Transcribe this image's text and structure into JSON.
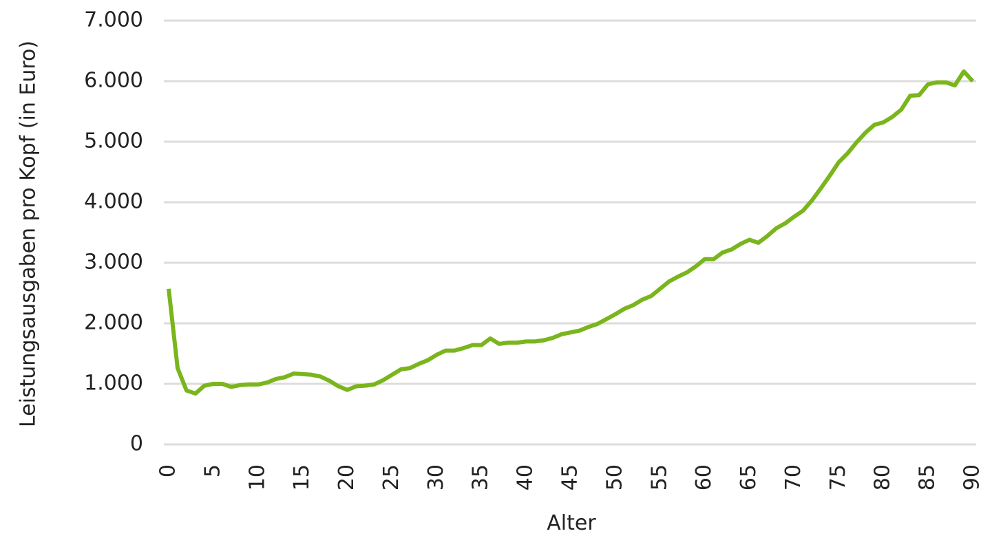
{
  "chart_data": {
    "type": "line",
    "xlabel": "Alter",
    "ylabel": "Leistungsausgaben pro Kopf (in Euro)",
    "x": [
      0,
      1,
      2,
      3,
      4,
      5,
      6,
      7,
      8,
      9,
      10,
      11,
      12,
      13,
      14,
      15,
      16,
      17,
      18,
      19,
      20,
      21,
      22,
      23,
      24,
      25,
      26,
      27,
      28,
      29,
      30,
      31,
      32,
      33,
      34,
      35,
      36,
      37,
      38,
      39,
      40,
      41,
      42,
      43,
      44,
      45,
      46,
      47,
      48,
      49,
      50,
      51,
      52,
      53,
      54,
      55,
      56,
      57,
      58,
      59,
      60,
      61,
      62,
      63,
      64,
      65,
      66,
      67,
      68,
      69,
      70,
      71,
      72,
      73,
      74,
      75,
      76,
      77,
      78,
      79,
      80,
      81,
      82,
      83,
      84,
      85,
      86,
      87,
      88,
      89,
      90
    ],
    "series": [
      {
        "color": "#7ab51d",
        "values": [
          2570,
          1260,
          890,
          840,
          970,
          1000,
          1000,
          950,
          980,
          990,
          990,
          1020,
          1080,
          1110,
          1170,
          1160,
          1150,
          1120,
          1050,
          960,
          900,
          960,
          970,
          990,
          1060,
          1150,
          1240,
          1260,
          1330,
          1390,
          1480,
          1550,
          1550,
          1590,
          1640,
          1640,
          1750,
          1660,
          1680,
          1680,
          1700,
          1700,
          1720,
          1760,
          1820,
          1850,
          1880,
          1940,
          1990,
          2070,
          2150,
          2240,
          2300,
          2390,
          2450,
          2570,
          2690,
          2770,
          2840,
          2940,
          3060,
          3060,
          3170,
          3220,
          3310,
          3380,
          3330,
          3440,
          3570,
          3650,
          3760,
          3860,
          4030,
          4230,
          4440,
          4660,
          4810,
          4990,
          5150,
          5280,
          5320,
          5410,
          5530,
          5760,
          5770,
          5950,
          5980,
          5980,
          5930,
          6160,
          6000
        ]
      }
    ],
    "xlim": [
      0,
      90
    ],
    "xticks": [
      0,
      5,
      10,
      15,
      20,
      25,
      30,
      35,
      40,
      45,
      50,
      55,
      60,
      65,
      70,
      75,
      80,
      85,
      90
    ],
    "ylim": [
      0,
      7000
    ],
    "yticks": [
      0,
      {
        "value": 1000,
        "label": "1.000"
      },
      {
        "value": 2000,
        "label": "2.000"
      },
      {
        "value": 3000,
        "label": "3.000"
      },
      {
        "value": 4000,
        "label": "4.000"
      },
      {
        "value": 5000,
        "label": "5.000"
      },
      {
        "value": 6000,
        "label": "6.000"
      },
      {
        "value": 7000,
        "label": "7.000"
      }
    ],
    "grid": true
  }
}
